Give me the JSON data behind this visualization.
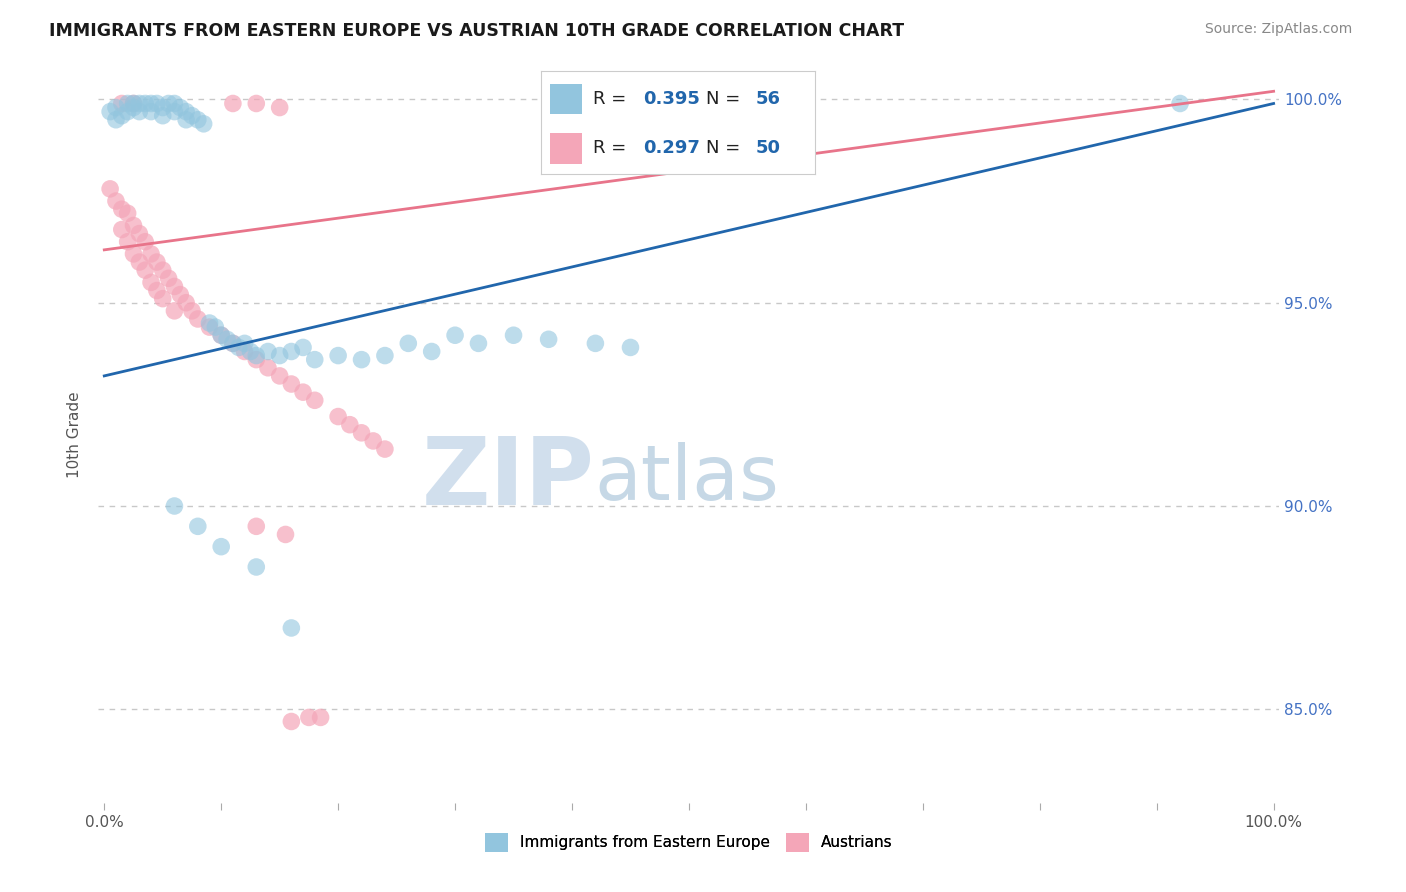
{
  "title": "IMMIGRANTS FROM EASTERN EUROPE VS AUSTRIAN 10TH GRADE CORRELATION CHART",
  "source": "Source: ZipAtlas.com",
  "ylabel": "10th Grade",
  "xlim": [
    -0.005,
    1.005
  ],
  "ylim": [
    0.827,
    1.008
  ],
  "yticks": [
    0.85,
    0.9,
    0.95,
    1.0
  ],
  "ytick_labels": [
    "85.0%",
    "90.0%",
    "95.0%",
    "100.0%"
  ],
  "blue_color": "#92c5de",
  "pink_color": "#f4a6b8",
  "blue_line_color": "#2166ac",
  "pink_line_color": "#e8748a",
  "blue_line_x0": 0.0,
  "blue_line_y0": 0.932,
  "blue_line_x1": 1.0,
  "blue_line_y1": 0.999,
  "pink_line_x0": 0.0,
  "pink_line_y0": 0.963,
  "pink_line_x1": 1.0,
  "pink_line_y1": 1.002,
  "legend_R_blue": "0.395",
  "legend_N_blue": "56",
  "legend_R_pink": "0.297",
  "legend_N_pink": "50",
  "background_color": "#ffffff",
  "grid_color": "#c8c8c8",
  "right_axis_color": "#4472c4",
  "blue_scatter_x": [
    0.005,
    0.01,
    0.01,
    0.015,
    0.02,
    0.02,
    0.025,
    0.025,
    0.03,
    0.03,
    0.035,
    0.04,
    0.04,
    0.045,
    0.05,
    0.05,
    0.055,
    0.06,
    0.06,
    0.065,
    0.07,
    0.07,
    0.075,
    0.08,
    0.085,
    0.09,
    0.095,
    0.1,
    0.105,
    0.11,
    0.115,
    0.12,
    0.125,
    0.13,
    0.14,
    0.15,
    0.16,
    0.17,
    0.18,
    0.2,
    0.22,
    0.24,
    0.26,
    0.28,
    0.3,
    0.32,
    0.35,
    0.38,
    0.42,
    0.45,
    0.06,
    0.08,
    0.1,
    0.13,
    0.16,
    0.92
  ],
  "blue_scatter_y": [
    0.997,
    0.998,
    0.995,
    0.996,
    0.999,
    0.997,
    0.999,
    0.998,
    0.999,
    0.997,
    0.999,
    0.999,
    0.997,
    0.999,
    0.998,
    0.996,
    0.999,
    0.999,
    0.997,
    0.998,
    0.997,
    0.995,
    0.996,
    0.995,
    0.994,
    0.945,
    0.944,
    0.942,
    0.941,
    0.94,
    0.939,
    0.94,
    0.938,
    0.937,
    0.938,
    0.937,
    0.938,
    0.939,
    0.936,
    0.937,
    0.936,
    0.937,
    0.94,
    0.938,
    0.942,
    0.94,
    0.942,
    0.941,
    0.94,
    0.939,
    0.9,
    0.895,
    0.89,
    0.885,
    0.87,
    0.999
  ],
  "pink_scatter_x": [
    0.005,
    0.01,
    0.015,
    0.015,
    0.02,
    0.02,
    0.025,
    0.025,
    0.03,
    0.03,
    0.035,
    0.035,
    0.04,
    0.04,
    0.045,
    0.045,
    0.05,
    0.05,
    0.055,
    0.06,
    0.06,
    0.065,
    0.07,
    0.075,
    0.08,
    0.09,
    0.1,
    0.11,
    0.12,
    0.13,
    0.14,
    0.15,
    0.16,
    0.17,
    0.18,
    0.2,
    0.21,
    0.22,
    0.23,
    0.24,
    0.015,
    0.025,
    0.11,
    0.13,
    0.15,
    0.16,
    0.175,
    0.185,
    0.13,
    0.155
  ],
  "pink_scatter_y": [
    0.978,
    0.975,
    0.973,
    0.968,
    0.972,
    0.965,
    0.969,
    0.962,
    0.967,
    0.96,
    0.965,
    0.958,
    0.962,
    0.955,
    0.96,
    0.953,
    0.958,
    0.951,
    0.956,
    0.954,
    0.948,
    0.952,
    0.95,
    0.948,
    0.946,
    0.944,
    0.942,
    0.94,
    0.938,
    0.936,
    0.934,
    0.932,
    0.93,
    0.928,
    0.926,
    0.922,
    0.92,
    0.918,
    0.916,
    0.914,
    0.999,
    0.999,
    0.999,
    0.999,
    0.998,
    0.847,
    0.848,
    0.848,
    0.895,
    0.893
  ]
}
